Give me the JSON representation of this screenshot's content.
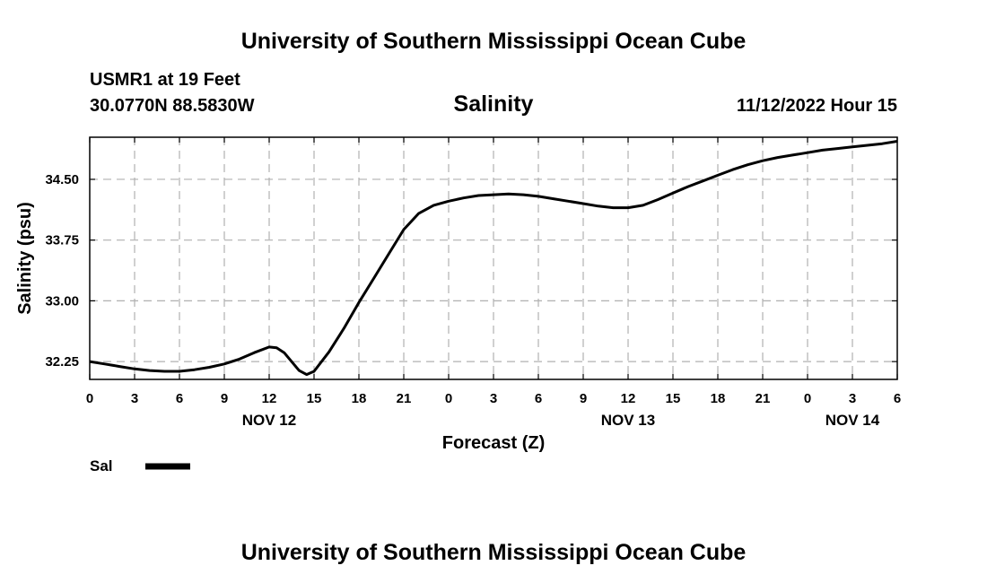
{
  "header": {
    "title": "University of Southern Mississippi Ocean Cube",
    "station": "USMR1 at 19 Feet",
    "coords": "30.0770N  88.5830W",
    "variable": "Salinity",
    "timestamp": "11/12/2022 Hour 15"
  },
  "footer": {
    "title": "University of Southern Mississippi Ocean Cube"
  },
  "colors": {
    "line": "#000000",
    "grid": "#b0b0b0"
  },
  "chart_data": {
    "type": "line",
    "xlabel": "Forecast (Z)",
    "ylabel": "Salinity (psu)",
    "x_tick_labels": [
      "0",
      "3",
      "6",
      "9",
      "12",
      "15",
      "18",
      "21",
      "0",
      "3",
      "6",
      "9",
      "12",
      "15",
      "18",
      "21",
      "0",
      "3",
      "6"
    ],
    "day_labels": [
      {
        "label": "NOV 12",
        "hour": 12
      },
      {
        "label": "NOV 13",
        "hour": 36
      },
      {
        "label": "NOV 14",
        "hour": 51
      }
    ],
    "y_ticks": [
      32.25,
      33.0,
      33.75,
      34.5
    ],
    "y_tick_labels": [
      "32.25",
      "33.00",
      "33.75",
      "34.50"
    ],
    "xlim": [
      0,
      54
    ],
    "ylim": [
      32.03,
      35.02
    ],
    "grid": true,
    "legend_position": "bottom-left",
    "series": [
      {
        "name": "Sal",
        "x": [
          0,
          1,
          2,
          3,
          4,
          5,
          6,
          7,
          8,
          9,
          10,
          11,
          12,
          12.5,
          13,
          14,
          14.5,
          15,
          16,
          17,
          18,
          19,
          20,
          21,
          22,
          23,
          24,
          25,
          26,
          27,
          28,
          29,
          30,
          31,
          32,
          33,
          34,
          35,
          36,
          37,
          38,
          39,
          40,
          41,
          42,
          43,
          44,
          45,
          46,
          47,
          48,
          49,
          50,
          51,
          52,
          53,
          54
        ],
        "y": [
          32.25,
          32.22,
          32.19,
          32.16,
          32.14,
          32.13,
          32.13,
          32.15,
          32.18,
          32.22,
          32.28,
          32.36,
          32.43,
          32.42,
          32.36,
          32.14,
          32.09,
          32.13,
          32.37,
          32.66,
          32.98,
          33.28,
          33.58,
          33.88,
          34.08,
          34.18,
          34.23,
          34.27,
          34.3,
          34.31,
          34.32,
          34.31,
          34.29,
          34.26,
          34.23,
          34.2,
          34.17,
          34.15,
          34.15,
          34.18,
          34.25,
          34.33,
          34.41,
          34.48,
          34.55,
          34.62,
          34.68,
          34.73,
          34.77,
          34.8,
          34.83,
          34.86,
          34.88,
          34.9,
          34.92,
          34.94,
          34.97
        ]
      }
    ]
  }
}
